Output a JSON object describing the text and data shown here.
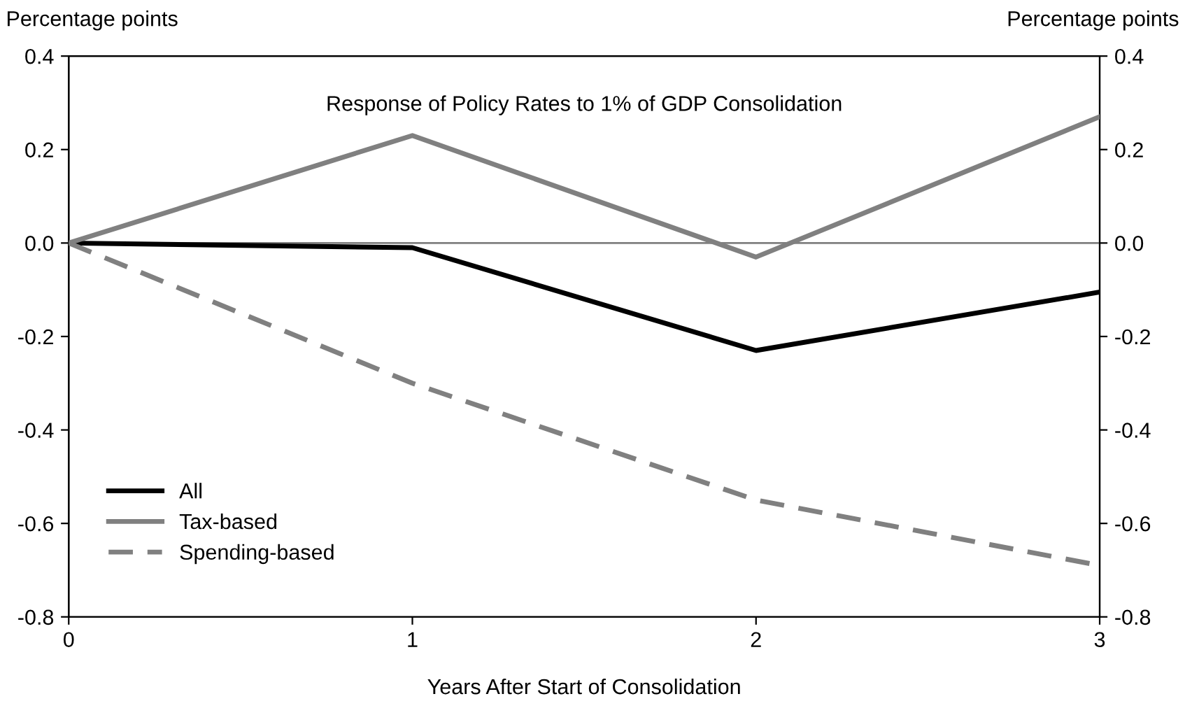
{
  "chart_data": {
    "type": "line",
    "title": "Response of Policy Rates to 1% of GDP Consolidation",
    "xlabel": "Years After Start of Consolidation",
    "ylabel": "Percentage points",
    "y2label": "Percentage points",
    "x": [
      0,
      1,
      2,
      3
    ],
    "series": [
      {
        "name": "All",
        "color": "#000000",
        "values": [
          0,
          -0.01,
          -0.23,
          -0.105
        ]
      },
      {
        "name": "Tax-based",
        "color": "#808080",
        "values": [
          0,
          0.23,
          -0.03,
          0.27
        ]
      },
      {
        "name": "Spending-based",
        "color": "#808080",
        "values": [
          0,
          -0.3,
          -0.55,
          -0.69
        ],
        "line_style": "dashed"
      }
    ],
    "xlim": [
      0,
      3
    ],
    "xticks": [
      0,
      1,
      2,
      3
    ],
    "ylim": [
      -0.8,
      0.4
    ],
    "yticks": [
      -0.8,
      -0.6,
      -0.4,
      -0.2,
      {
        "value": 0,
        "label": "0.0"
      },
      0.2,
      0.4
    ],
    "y2lim": [
      -0.8,
      0.4
    ],
    "y2ticks": [
      -0.8,
      -0.6,
      -0.4,
      -0.2,
      {
        "value": 0,
        "label": "0.0"
      },
      0.2,
      0.4
    ],
    "ref_lines": [
      {
        "axis": "y",
        "value": 0,
        "color": "#808080"
      }
    ],
    "grid": false,
    "legend": "bottom left",
    "marker": "none",
    "line_style": "solid"
  }
}
